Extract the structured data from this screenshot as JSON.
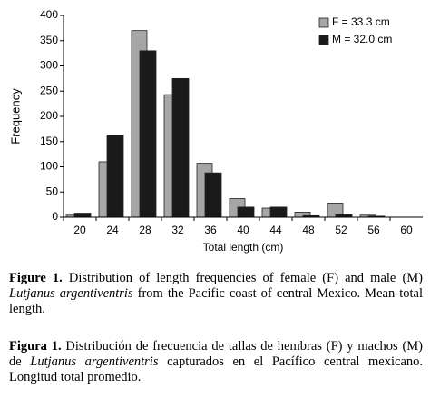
{
  "chart_data": {
    "type": "bar",
    "categories": [
      "20",
      "24",
      "28",
      "32",
      "36",
      "40",
      "44",
      "48",
      "52",
      "56",
      "60"
    ],
    "series": [
      {
        "name": "F = 33.3 cm",
        "color": "#a6a6a6",
        "values": [
          4,
          110,
          370,
          243,
          107,
          37,
          18,
          10,
          28,
          4,
          0
        ]
      },
      {
        "name": "M = 32.0 cm",
        "color": "#1a1a1a",
        "values": [
          8,
          163,
          330,
          275,
          88,
          20,
          20,
          3,
          5,
          2,
          0
        ]
      }
    ],
    "x_label": "Total length (cm)",
    "y_label": "Frequency",
    "ylim": [
      0,
      400
    ],
    "yticks": [
      0,
      50,
      100,
      150,
      200,
      250,
      300,
      350,
      400
    ],
    "legend": "upper-right"
  },
  "caption_en": {
    "label": "Figure 1.",
    "text": [
      "Distribution of length frequencies of female (F) and male (M) ",
      "Lutjanus argentiventris",
      " from the Pacific coast of central Mexico. Mean total length."
    ]
  },
  "caption_es": {
    "label": "Figura 1.",
    "text": [
      "Distribución de frecuencia de tallas de hembras (F) y machos (M) de ",
      "Lutjanus argentiventris",
      " capturados en el Pacífico central mexicano. Longitud total promedio."
    ]
  }
}
